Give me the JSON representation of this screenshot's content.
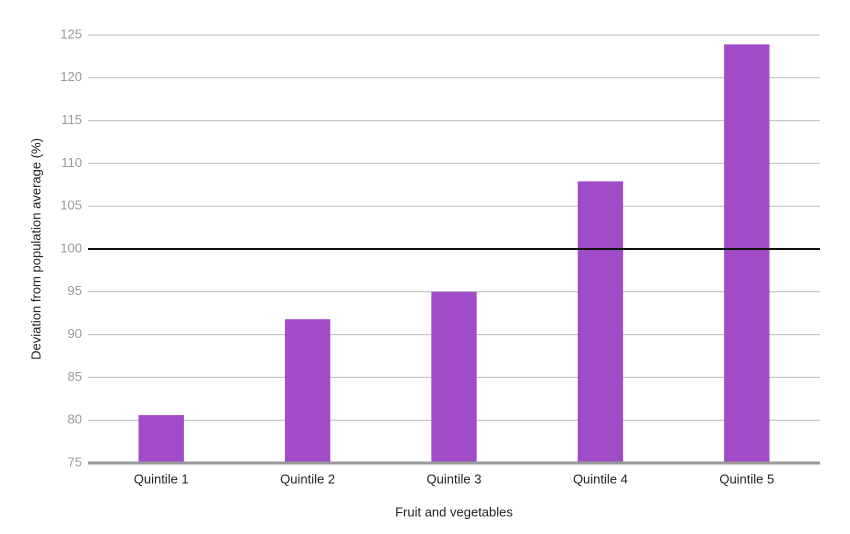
{
  "chart_data": {
    "type": "bar",
    "x_label": "Fruit and vegetables",
    "y_label": "Deviation from population average (%)",
    "categories": [
      "Quintile 1",
      "Quintile 2",
      "Quintile 3",
      "Quintile 4",
      "Quintile 5"
    ],
    "values": [
      80.6,
      91.8,
      95,
      107.9,
      123.9
    ],
    "color": "#a04bc8",
    "ylim": [
      75,
      125
    ],
    "yticks": [
      75,
      80,
      85,
      90,
      95,
      100,
      105,
      110,
      115,
      120,
      125
    ],
    "grid": true,
    "reference_line": 100
  }
}
